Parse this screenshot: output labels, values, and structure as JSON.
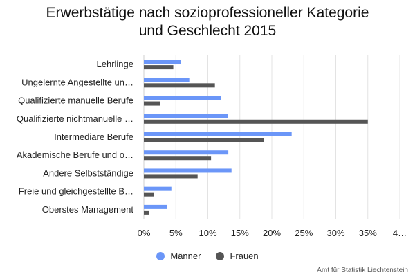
{
  "title_line1": "Erwerbstätige nach sozioprofessioneller Kategorie",
  "title_line2": "und Geschlecht 2015",
  "source": "Amt für Statistik Liechtenstein",
  "chart_data": {
    "type": "bar",
    "orientation": "horizontal",
    "categories": [
      "Lehrlinge",
      "Ungelernte Angestellte un…",
      "Qualifizierte manuelle Berufe",
      "Qualifizierte nichtmanuelle …",
      "Intermediäre Berufe",
      "Akademische Berufe und o…",
      "Andere Selbstständige",
      "Freie und gleichgestellte B…",
      "Oberstes Management"
    ],
    "series": [
      {
        "name": "Männer",
        "color": "#6b96f8",
        "values": [
          5.8,
          7.1,
          12.1,
          13.1,
          23.1,
          13.2,
          13.7,
          4.3,
          3.6
        ]
      },
      {
        "name": "Frauen",
        "color": "#555555",
        "values": [
          4.6,
          11.1,
          2.5,
          35.0,
          18.8,
          10.5,
          8.4,
          1.6,
          0.8
        ]
      }
    ],
    "xlim": [
      0,
      40
    ],
    "x_ticks": [
      "0%",
      "5%",
      "10%",
      "15%",
      "20%",
      "25%",
      "30%",
      "35%",
      "4…"
    ],
    "grid": true,
    "legend_position": "bottom"
  }
}
